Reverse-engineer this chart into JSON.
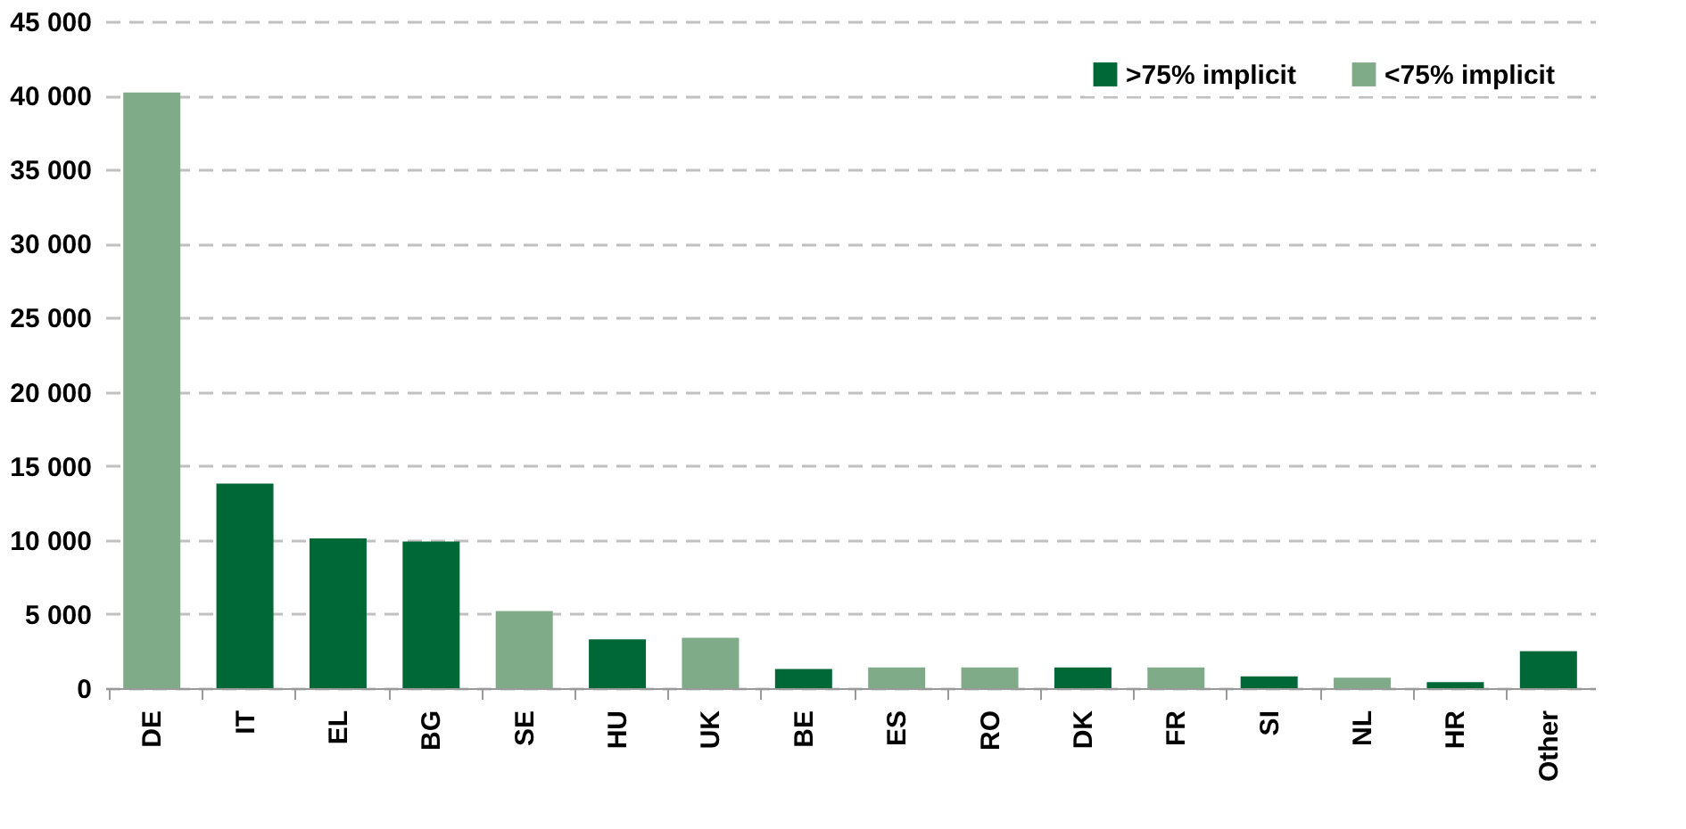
{
  "chart_data": {
    "type": "bar",
    "categories": [
      "DE",
      "IT",
      "EL",
      "BG",
      "SE",
      "HU",
      "UK",
      "BE",
      "ES",
      "RO",
      "DK",
      "FR",
      "SI",
      "NL",
      "HR",
      "Other"
    ],
    "series": [
      {
        "name": ">75% implicit",
        "color": "#006837",
        "values": [
          null,
          13800,
          10100,
          9900,
          null,
          3300,
          null,
          1300,
          null,
          null,
          1400,
          null,
          800,
          null,
          400,
          2500
        ]
      },
      {
        "name": "<75% implicit",
        "color": "#7fab88",
        "values": [
          40200,
          null,
          null,
          null,
          5200,
          null,
          3400,
          null,
          1400,
          1400,
          null,
          1400,
          null,
          700,
          null,
          null
        ]
      }
    ],
    "ylim": [
      0,
      45000
    ],
    "yticks": [
      {
        "value": 0,
        "label": "0"
      },
      {
        "value": 5000,
        "label": "5 000"
      },
      {
        "value": 10000,
        "label": "10 000"
      },
      {
        "value": 15000,
        "label": "15 000"
      },
      {
        "value": 20000,
        "label": "20 000"
      },
      {
        "value": 25000,
        "label": "25 000"
      },
      {
        "value": 30000,
        "label": "30 000"
      },
      {
        "value": 35000,
        "label": "35 000"
      },
      {
        "value": 40000,
        "label": "40 000"
      },
      {
        "value": 45000,
        "label": "45 000"
      }
    ],
    "grid": "y",
    "legend": "top right"
  }
}
